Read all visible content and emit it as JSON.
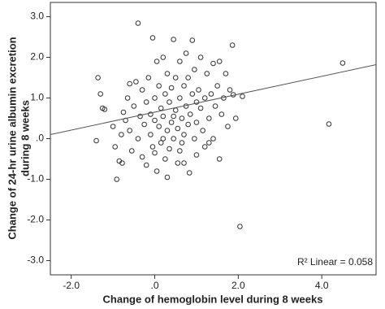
{
  "chart_data": {
    "type": "scatter",
    "xlabel": "Change of hemoglobin level during 8 weeks",
    "ylabel": [
      "Change of 24-hr urine albumin excretion",
      "during 8 weeks"
    ],
    "annotation": "R² Linear = 0.058",
    "xlim": [
      -2.5,
      5.3
    ],
    "ylim": [
      -3.35,
      3.35
    ],
    "xticks": [
      {
        "value": -2,
        "label": "-2.0"
      },
      {
        "value": 0,
        "label": ".0"
      },
      {
        "value": 2,
        "label": "2.0"
      },
      {
        "value": 4,
        "label": "4.0"
      }
    ],
    "yticks": [
      {
        "value": 3,
        "label": "3.0"
      },
      {
        "value": 2,
        "label": "2.0"
      },
      {
        "value": 1,
        "label": "1.0"
      },
      {
        "value": 0,
        "label": ".0"
      },
      {
        "value": -1,
        "label": "-1.0"
      },
      {
        "value": -2,
        "label": "-2.0"
      },
      {
        "value": -3,
        "label": "-3.0"
      }
    ],
    "marker_color": "#333333",
    "line_color": "#555555",
    "points": {
      "x": [
        -1.4,
        -1.36,
        -1.25,
        -1.2,
        -1.3,
        -1.0,
        -0.95,
        -0.91,
        -0.85,
        -0.78,
        -0.8,
        -0.75,
        -0.7,
        -0.65,
        -0.6,
        -0.55,
        -0.5,
        -0.45,
        -0.4,
        -0.4,
        -0.35,
        -0.3,
        -0.3,
        -0.25,
        -0.2,
        -0.15,
        -0.1,
        -0.1,
        -0.05,
        -0.05,
        0.0,
        0.0,
        0.05,
        0.05,
        0.1,
        0.1,
        0.15,
        0.15,
        0.2,
        0.2,
        0.25,
        0.25,
        0.3,
        0.3,
        0.35,
        0.35,
        0.4,
        0.4,
        0.45,
        0.45,
        0.5,
        0.5,
        0.55,
        0.55,
        0.6,
        0.6,
        0.65,
        0.65,
        0.7,
        0.7,
        0.75,
        0.75,
        0.8,
        0.8,
        0.83,
        0.85,
        0.9,
        0.9,
        0.95,
        0.95,
        1.0,
        1.0,
        1.05,
        1.1,
        1.1,
        1.15,
        1.2,
        1.2,
        1.25,
        1.3,
        1.35,
        1.4,
        1.4,
        1.45,
        1.5,
        1.55,
        1.55,
        1.6,
        1.65,
        1.7,
        1.75,
        1.8,
        1.86,
        1.88,
        1.94,
        2.04,
        2.1,
        4.17,
        4.5,
        -0.6,
        0.0,
        0.3,
        0.6,
        1.0,
        0.2,
        -0.2,
        0.45,
        0.7,
        1.3
      ],
      "values": [
        -0.05,
        1.5,
        0.75,
        0.72,
        1.1,
        0.3,
        -0.2,
        -1.0,
        -0.55,
        -0.6,
        0.1,
        0.65,
        0.45,
        1.0,
        0.2,
        -0.3,
        0.8,
        1.4,
        2.84,
        0.0,
        0.55,
        1.2,
        -0.45,
        0.35,
        0.9,
        1.5,
        0.1,
        0.6,
        2.48,
        -0.2,
        1.0,
        0.45,
        1.9,
        -0.8,
        0.3,
        1.3,
        0.75,
        -0.1,
        2.0,
        0.55,
        1.1,
        -0.5,
        0.2,
        1.6,
        0.9,
        -0.25,
        0.4,
        1.25,
        2.44,
        0.0,
        0.7,
        1.5,
        -0.6,
        0.25,
        1.0,
        1.9,
        0.5,
        -0.1,
        1.3,
        0.1,
        0.8,
        2.1,
        0.35,
        1.5,
        -0.84,
        0.6,
        2.42,
        1.1,
        0.0,
        1.7,
        0.4,
        -0.4,
        1.2,
        0.75,
        2.0,
        0.2,
        1.0,
        -0.2,
        1.6,
        0.5,
        1.1,
        0.0,
        1.85,
        0.8,
        1.3,
        1.9,
        -0.5,
        0.6,
        1.0,
        1.6,
        0.3,
        1.2,
        2.3,
        1.08,
        0.5,
        -2.16,
        1.04,
        0.36,
        1.86,
        1.35,
        -0.35,
        -0.95,
        -0.3,
        0.9,
        0.0,
        -0.65,
        0.55,
        -0.6,
        -0.1
      ]
    },
    "fit_line": {
      "x": [
        -2.5,
        5.3
      ],
      "values": [
        0.1,
        1.82
      ]
    }
  }
}
